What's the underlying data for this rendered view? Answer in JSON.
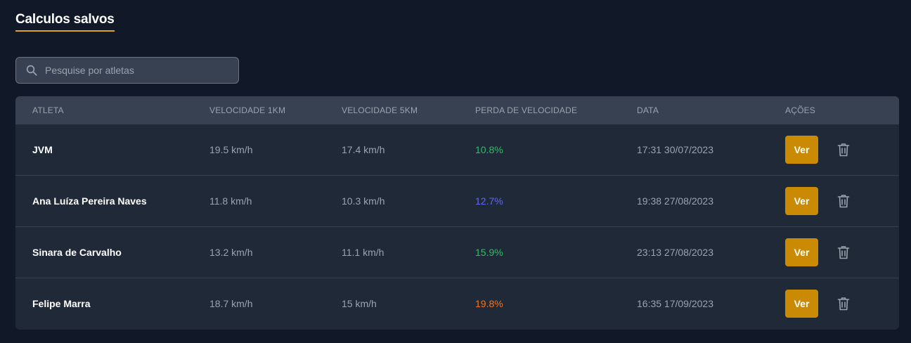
{
  "page": {
    "title": "Calculos salvos"
  },
  "search": {
    "placeholder": "Pesquise por atletas",
    "value": "",
    "icon": "search-icon"
  },
  "table": {
    "headers": [
      "Atleta",
      "Velocidade 1km",
      "Velocidade 5km",
      "Perda de velocidade",
      "Data",
      "Ações"
    ],
    "rows": [
      {
        "athlete": "JVM",
        "speed_1km": "19.5 km/h",
        "speed_5km": "17.4 km/h",
        "speed_loss": "10.8%",
        "speed_loss_color": "#22c55e",
        "date": "17:31 30/07/2023",
        "view_label": "Ver",
        "delete_icon": "trash-icon"
      },
      {
        "athlete": "Ana Luíza Pereira Naves",
        "speed_1km": "11.8 km/h",
        "speed_5km": "10.3 km/h",
        "speed_loss": "12.7%",
        "speed_loss_color": "#6366f1",
        "date": "19:38 27/08/2023",
        "view_label": "Ver",
        "delete_icon": "trash-icon"
      },
      {
        "athlete": "Sinara de Carvalho",
        "speed_1km": "13.2 km/h",
        "speed_5km": "11.1 km/h",
        "speed_loss": "15.9%",
        "speed_loss_color": "#22c55e",
        "date": "23:13 27/08/2023",
        "view_label": "Ver",
        "delete_icon": "trash-icon"
      },
      {
        "athlete": "Felipe Marra",
        "speed_1km": "18.7 km/h",
        "speed_5km": "15 km/h",
        "speed_loss": "19.8%",
        "speed_loss_color": "#f97316",
        "date": "16:35 17/09/2023",
        "view_label": "Ver",
        "delete_icon": "trash-icon"
      }
    ]
  },
  "colors": {
    "background": "#111827",
    "card": "#1f2937",
    "header": "#374151",
    "accent": "#ca8a04",
    "title_underline": "#e0a225"
  }
}
